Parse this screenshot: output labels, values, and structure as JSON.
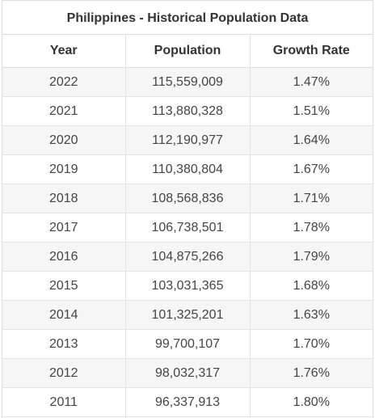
{
  "table": {
    "title": "Philippines - Historical Population Data",
    "headers": [
      "Year",
      "Population",
      "Growth Rate"
    ],
    "rows": [
      [
        "2022",
        "115,559,009",
        "1.47%"
      ],
      [
        "2021",
        "113,880,328",
        "1.51%"
      ],
      [
        "2020",
        "112,190,977",
        "1.64%"
      ],
      [
        "2019",
        "110,380,804",
        "1.67%"
      ],
      [
        "2018",
        "108,568,836",
        "1.71%"
      ],
      [
        "2017",
        "106,738,501",
        "1.78%"
      ],
      [
        "2016",
        "104,875,266",
        "1.79%"
      ],
      [
        "2015",
        "103,031,365",
        "1.68%"
      ],
      [
        "2014",
        "101,325,201",
        "1.63%"
      ],
      [
        "2013",
        "99,700,107",
        "1.70%"
      ],
      [
        "2012",
        "98,032,317",
        "1.76%"
      ],
      [
        "2011",
        "96,337,913",
        "1.80%"
      ]
    ]
  },
  "colors": {
    "header_text": "#333333",
    "cell_text": "#444444",
    "row_stripe": "#f6f6f6",
    "border": "#dcdcdc"
  }
}
